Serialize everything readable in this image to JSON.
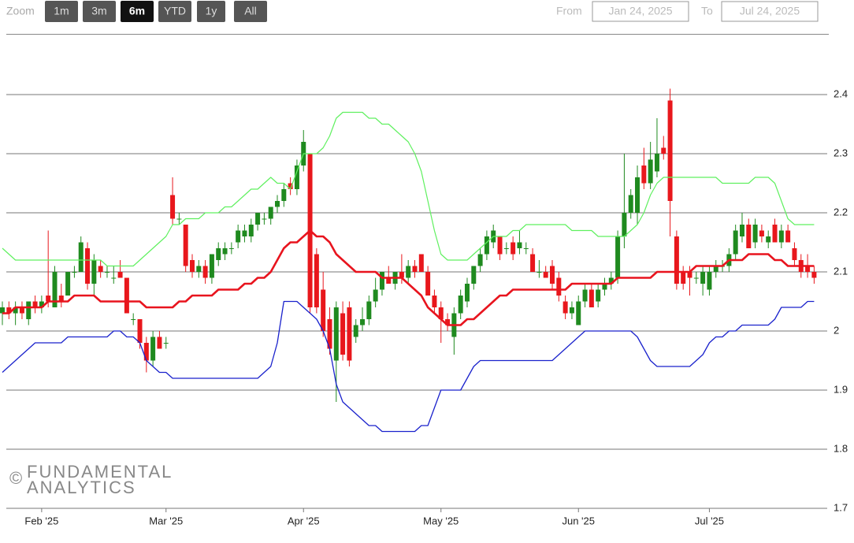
{
  "ui": {
    "zoom_label": "Zoom",
    "zoom_buttons": [
      "1m",
      "3m",
      "6m",
      "YTD",
      "1y",
      "All"
    ],
    "zoom_selected": 2,
    "from_label": "From",
    "from": "Jan 24, 2025",
    "to_label": "To",
    "to": "Jul 24, 2025",
    "watermark": {
      "symbol": "©",
      "line1": "FUNDAMENTAL",
      "line2": "ANALYTICS"
    }
  },
  "chart_data": {
    "type": "candlestick",
    "up_color": "#1f8a1f",
    "down_color": "#e8171c",
    "xlim": [
      0.6,
      126
    ],
    "ylim": [
      1.7,
      2.5
    ],
    "yticks": [
      1.7,
      1.8,
      1.9,
      2,
      2.1,
      2.2,
      2.3,
      2.4
    ],
    "xticks": [
      {
        "value": 6,
        "label": "Feb '25"
      },
      {
        "value": 25,
        "label": "Mar '25"
      },
      {
        "value": 46,
        "label": "Apr '25"
      },
      {
        "value": 67,
        "label": "May '25"
      },
      {
        "value": 88,
        "label": "Jun '25"
      },
      {
        "value": 108,
        "label": "Jul '25"
      }
    ],
    "grid": true,
    "ohlc": [
      [
        2.03,
        2.05,
        2.01,
        2.04
      ],
      [
        2.04,
        2.05,
        2.02,
        2.03
      ],
      [
        2.03,
        2.05,
        2.01,
        2.04
      ],
      [
        2.04,
        2.05,
        2.02,
        2.03
      ],
      [
        2.02,
        2.05,
        2.01,
        2.05
      ],
      [
        2.05,
        2.06,
        2.03,
        2.04
      ],
      [
        2.04,
        2.06,
        2.03,
        2.05
      ],
      [
        2.06,
        2.17,
        2.04,
        2.05
      ],
      [
        2.04,
        2.11,
        2.04,
        2.1
      ],
      [
        2.06,
        2.08,
        2.04,
        2.05
      ],
      [
        2.06,
        2.1,
        2.06,
        2.1
      ],
      [
        2.1,
        2.11,
        2.09,
        2.1
      ],
      [
        2.1,
        2.16,
        2.1,
        2.15
      ],
      [
        2.14,
        2.15,
        2.07,
        2.08
      ],
      [
        2.08,
        2.13,
        2.06,
        2.12
      ],
      [
        2.11,
        2.12,
        2.09,
        2.1
      ],
      [
        2.1,
        2.11,
        2.09,
        2.1
      ],
      [
        2.09,
        2.11,
        2.08,
        2.09
      ],
      [
        2.1,
        2.12,
        2.09,
        2.09
      ],
      [
        2.09,
        2.09,
        2.03,
        2.03
      ],
      [
        2.02,
        2.03,
        2.01,
        2.02
      ],
      [
        2.02,
        2.02,
        1.97,
        1.98
      ],
      [
        1.98,
        1.99,
        1.93,
        1.95
      ],
      [
        1.95,
        2,
        1.94,
        1.99
      ],
      [
        1.99,
        2,
        1.97,
        1.97
      ],
      [
        1.98,
        1.99,
        1.97,
        1.98
      ],
      [
        2.23,
        2.26,
        2.18,
        2.19
      ],
      [
        2.19,
        2.2,
        2.18,
        2.19
      ],
      [
        2.18,
        2.18,
        2.1,
        2.11
      ],
      [
        2.12,
        2.13,
        2.09,
        2.1
      ],
      [
        2.1,
        2.12,
        2.09,
        2.11
      ],
      [
        2.11,
        2.12,
        2.08,
        2.09
      ],
      [
        2.09,
        2.13,
        2.08,
        2.13
      ],
      [
        2.12,
        2.15,
        2.11,
        2.14
      ],
      [
        2.13,
        2.15,
        2.12,
        2.14
      ],
      [
        2.14,
        2.15,
        2.13,
        2.14
      ],
      [
        2.15,
        2.18,
        2.14,
        2.17
      ],
      [
        2.16,
        2.18,
        2.15,
        2.17
      ],
      [
        2.16,
        2.19,
        2.15,
        2.18
      ],
      [
        2.18,
        2.2,
        2.17,
        2.2
      ],
      [
        2.19,
        2.2,
        2.18,
        2.19
      ],
      [
        2.19,
        2.21,
        2.18,
        2.21
      ],
      [
        2.21,
        2.23,
        2.2,
        2.22
      ],
      [
        2.22,
        2.25,
        2.21,
        2.24
      ],
      [
        2.25,
        2.26,
        2.23,
        2.24
      ],
      [
        2.24,
        2.29,
        2.23,
        2.28
      ],
      [
        2.28,
        2.34,
        2.27,
        2.32
      ],
      [
        2.3,
        2.3,
        2.03,
        2.04
      ],
      [
        2.13,
        2.14,
        2.03,
        2.04
      ],
      [
        2.07,
        2.1,
        1.99,
        2
      ],
      [
        2.02,
        2.04,
        1.96,
        1.97
      ],
      [
        1.95,
        2.05,
        1.88,
        2.04
      ],
      [
        2.03,
        2.05,
        1.95,
        1.96
      ],
      [
        2.04,
        2.05,
        1.94,
        1.95
      ],
      [
        1.99,
        2.02,
        1.98,
        2.01
      ],
      [
        2.01,
        2.04,
        2,
        2.02
      ],
      [
        2.02,
        2.06,
        2.01,
        2.05
      ],
      [
        2.05,
        2.09,
        2.04,
        2.07
      ],
      [
        2.07,
        2.1,
        2.06,
        2.1
      ],
      [
        2.09,
        2.11,
        2.08,
        2.08
      ],
      [
        2.08,
        2.1,
        2.07,
        2.1
      ],
      [
        2.1,
        2.13,
        2.08,
        2.09
      ],
      [
        2.09,
        2.12,
        2.08,
        2.11
      ],
      [
        2.11,
        2.12,
        2.09,
        2.1
      ],
      [
        2.13,
        2.13,
        2.1,
        2.1
      ],
      [
        2.1,
        2.11,
        2.06,
        2.06
      ],
      [
        2.06,
        2.07,
        2.03,
        2.04
      ],
      [
        2.04,
        2.05,
        1.98,
        2.02
      ],
      [
        2.02,
        2.03,
        2,
        2.01
      ],
      [
        1.99,
        2.04,
        1.96,
        2.03
      ],
      [
        2.03,
        2.07,
        2.02,
        2.06
      ],
      [
        2.05,
        2.09,
        2.04,
        2.08
      ],
      [
        2.08,
        2.11,
        2.07,
        2.11
      ],
      [
        2.11,
        2.14,
        2.1,
        2.13
      ],
      [
        2.13,
        2.17,
        2.12,
        2.16
      ],
      [
        2.15,
        2.18,
        2.14,
        2.17
      ],
      [
        2.16,
        2.16,
        2.12,
        2.13
      ],
      [
        2.14,
        2.15,
        2.13,
        2.14
      ],
      [
        2.15,
        2.16,
        2.12,
        2.13
      ],
      [
        2.14,
        2.17,
        2.13,
        2.15
      ],
      [
        2.14,
        2.15,
        2.13,
        2.14
      ],
      [
        2.13,
        2.14,
        2.1,
        2.1
      ],
      [
        2.1,
        2.12,
        2.09,
        2.1
      ],
      [
        2.1,
        2.11,
        2.09,
        2.09
      ],
      [
        2.11,
        2.12,
        2.07,
        2.08
      ],
      [
        2.09,
        2.1,
        2.05,
        2.06
      ],
      [
        2.05,
        2.06,
        2.02,
        2.03
      ],
      [
        2.03,
        2.05,
        2.02,
        2.04
      ],
      [
        2.01,
        2.06,
        2.01,
        2.05
      ],
      [
        2.05,
        2.08,
        2.04,
        2.07
      ],
      [
        2.07,
        2.08,
        2.04,
        2.04
      ],
      [
        2.05,
        2.08,
        2.04,
        2.07
      ],
      [
        2.07,
        2.09,
        2.06,
        2.08
      ],
      [
        2.08,
        2.1,
        2.07,
        2.09
      ],
      [
        2.09,
        2.17,
        2.08,
        2.16
      ],
      [
        2.16,
        2.3,
        2.14,
        2.2
      ],
      [
        2.2,
        2.24,
        2.19,
        2.23
      ],
      [
        2.2,
        2.28,
        2.18,
        2.26
      ],
      [
        2.28,
        2.31,
        2.24,
        2.25
      ],
      [
        2.25,
        2.32,
        2.24,
        2.29
      ],
      [
        2.27,
        2.36,
        2.26,
        2.3
      ],
      [
        2.31,
        2.33,
        2.29,
        2.3
      ],
      [
        2.39,
        2.41,
        2.16,
        2.22
      ],
      [
        2.16,
        2.17,
        2.07,
        2.08
      ],
      [
        2.1,
        2.11,
        2.07,
        2.08
      ],
      [
        2.1,
        2.11,
        2.06,
        2.09
      ],
      [
        2.09,
        2.1,
        2.08,
        2.09
      ],
      [
        2.08,
        2.11,
        2.06,
        2.1
      ],
      [
        2.07,
        2.11,
        2.06,
        2.1
      ],
      [
        2.1,
        2.12,
        2.09,
        2.11
      ],
      [
        2.11,
        2.12,
        2.1,
        2.11
      ],
      [
        2.11,
        2.14,
        2.1,
        2.13
      ],
      [
        2.13,
        2.18,
        2.12,
        2.17
      ],
      [
        2.16,
        2.2,
        2.15,
        2.18
      ],
      [
        2.18,
        2.19,
        2.14,
        2.14
      ],
      [
        2.15,
        2.19,
        2.14,
        2.18
      ],
      [
        2.17,
        2.18,
        2.15,
        2.16
      ],
      [
        2.15,
        2.17,
        2.14,
        2.16
      ],
      [
        2.18,
        2.19,
        2.15,
        2.15
      ],
      [
        2.15,
        2.18,
        2.14,
        2.17
      ],
      [
        2.17,
        2.18,
        2.15,
        2.15
      ],
      [
        2.14,
        2.15,
        2.11,
        2.12
      ],
      [
        2.12,
        2.13,
        2.09,
        2.1
      ],
      [
        2.11,
        2.13,
        2.09,
        2.1
      ],
      [
        2.1,
        2.11,
        2.08,
        2.09
      ]
    ],
    "lines": [
      {
        "color": "#5ff05f",
        "width": 1.2,
        "values": [
          2.14,
          2.13,
          2.12,
          2.12,
          2.12,
          2.12,
          2.12,
          2.12,
          2.12,
          2.12,
          2.12,
          2.12,
          2.12,
          2.12,
          2.12,
          2.12,
          2.11,
          2.11,
          2.11,
          2.11,
          2.11,
          2.12,
          2.13,
          2.14,
          2.15,
          2.16,
          2.18,
          2.18,
          2.19,
          2.19,
          2.19,
          2.2,
          2.2,
          2.2,
          2.21,
          2.21,
          2.22,
          2.23,
          2.24,
          2.24,
          2.25,
          2.26,
          2.25,
          2.25,
          2.24,
          2.27,
          2.3,
          2.3,
          2.3,
          2.31,
          2.33,
          2.36,
          2.37,
          2.37,
          2.37,
          2.37,
          2.36,
          2.36,
          2.35,
          2.35,
          2.34,
          2.33,
          2.32,
          2.3,
          2.27,
          2.22,
          2.17,
          2.13,
          2.12,
          2.12,
          2.12,
          2.12,
          2.13,
          2.14,
          2.15,
          2.16,
          2.16,
          2.16,
          2.17,
          2.17,
          2.18,
          2.18,
          2.18,
          2.18,
          2.18,
          2.18,
          2.18,
          2.17,
          2.17,
          2.17,
          2.17,
          2.16,
          2.16,
          2.16,
          2.16,
          2.16,
          2.17,
          2.18,
          2.2,
          2.23,
          2.25,
          2.26,
          2.26,
          2.26,
          2.26,
          2.26,
          2.26,
          2.26,
          2.26,
          2.26,
          2.25,
          2.25,
          2.25,
          2.25,
          2.25,
          2.26,
          2.26,
          2.26,
          2.25,
          2.22,
          2.19,
          2.18,
          2.18,
          2.18,
          2.18
        ]
      },
      {
        "color": "#e8141e",
        "width": 2.6,
        "values": [
          2.03,
          2.03,
          2.04,
          2.04,
          2.04,
          2.04,
          2.04,
          2.05,
          2.05,
          2.05,
          2.05,
          2.06,
          2.06,
          2.06,
          2.06,
          2.05,
          2.05,
          2.05,
          2.05,
          2.05,
          2.05,
          2.05,
          2.04,
          2.04,
          2.04,
          2.04,
          2.04,
          2.05,
          2.05,
          2.06,
          2.06,
          2.06,
          2.06,
          2.07,
          2.07,
          2.07,
          2.07,
          2.08,
          2.08,
          2.09,
          2.09,
          2.1,
          2.12,
          2.14,
          2.15,
          2.15,
          2.16,
          2.17,
          2.16,
          2.16,
          2.15,
          2.13,
          2.12,
          2.11,
          2.1,
          2.1,
          2.1,
          2.1,
          2.09,
          2.09,
          2.09,
          2.09,
          2.08,
          2.07,
          2.06,
          2.04,
          2.03,
          2.02,
          2.01,
          2.01,
          2.01,
          2.02,
          2.02,
          2.03,
          2.04,
          2.05,
          2.06,
          2.06,
          2.07,
          2.07,
          2.07,
          2.07,
          2.07,
          2.07,
          2.07,
          2.07,
          2.07,
          2.08,
          2.08,
          2.08,
          2.08,
          2.08,
          2.08,
          2.08,
          2.09,
          2.09,
          2.09,
          2.09,
          2.09,
          2.09,
          2.1,
          2.1,
          2.1,
          2.1,
          2.1,
          2.1,
          2.11,
          2.11,
          2.11,
          2.11,
          2.11,
          2.12,
          2.12,
          2.12,
          2.13,
          2.13,
          2.13,
          2.13,
          2.12,
          2.12,
          2.11,
          2.11,
          2.11,
          2.11,
          2.11
        ]
      },
      {
        "color": "#1a22cc",
        "width": 1.3,
        "values": [
          1.93,
          1.94,
          1.95,
          1.96,
          1.97,
          1.98,
          1.98,
          1.98,
          1.98,
          1.98,
          1.99,
          1.99,
          1.99,
          1.99,
          1.99,
          1.99,
          1.99,
          2,
          2,
          1.99,
          1.99,
          1.98,
          1.95,
          1.94,
          1.93,
          1.93,
          1.92,
          1.92,
          1.92,
          1.92,
          1.92,
          1.92,
          1.92,
          1.92,
          1.92,
          1.92,
          1.92,
          1.92,
          1.92,
          1.92,
          1.93,
          1.94,
          1.98,
          2.05,
          2.05,
          2.05,
          2.04,
          2.03,
          2.02,
          2,
          1.97,
          1.91,
          1.88,
          1.87,
          1.86,
          1.85,
          1.84,
          1.84,
          1.83,
          1.83,
          1.83,
          1.83,
          1.83,
          1.83,
          1.84,
          1.84,
          1.87,
          1.9,
          1.9,
          1.9,
          1.9,
          1.92,
          1.94,
          1.95,
          1.95,
          1.95,
          1.95,
          1.95,
          1.95,
          1.95,
          1.95,
          1.95,
          1.95,
          1.95,
          1.95,
          1.96,
          1.97,
          1.98,
          1.99,
          2,
          2,
          2,
          2,
          2,
          2,
          2,
          2,
          1.99,
          1.97,
          1.95,
          1.94,
          1.94,
          1.94,
          1.94,
          1.94,
          1.94,
          1.95,
          1.96,
          1.98,
          1.99,
          1.99,
          2,
          2,
          2.01,
          2.01,
          2.01,
          2.01,
          2.01,
          2.02,
          2.04,
          2.04,
          2.04,
          2.04,
          2.05,
          2.05
        ]
      }
    ]
  }
}
